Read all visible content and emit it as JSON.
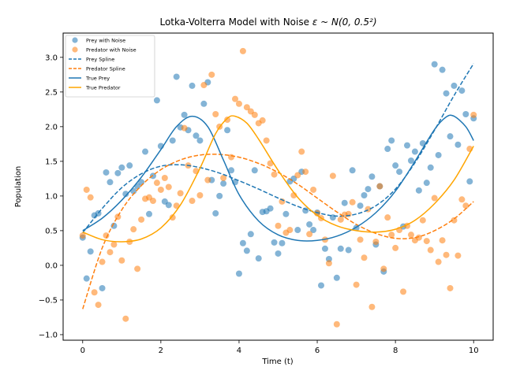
{
  "chart_data": {
    "type": "scatter",
    "title": "Lotka-Volterra Model with Noise",
    "title_math": "ε ~ N(0, 0.5²)",
    "xlabel": "Time (t)",
    "ylabel": "Population",
    "xlim": [
      -0.5,
      10.5
    ],
    "ylim": [
      -1.08,
      3.35
    ],
    "xticks": [
      0,
      2,
      4,
      6,
      8,
      10
    ],
    "yticks": [
      -1.0,
      -0.5,
      0.0,
      0.5,
      1.0,
      1.5,
      2.0,
      2.5,
      3.0
    ],
    "grid": false,
    "legend_position": "top-left",
    "colors": {
      "prey": "#1f77b4",
      "predator": "#ff7f0e",
      "true_predator": "#ffa500"
    },
    "series": [
      {
        "name": "Prey with Noise",
        "kind": "scatter",
        "color": "#1f77b4",
        "x": [
          0.0,
          0.1,
          0.2,
          0.3,
          0.4,
          0.5,
          0.6,
          0.7,
          0.8,
          0.9,
          1.0,
          1.1,
          1.2,
          1.3,
          1.4,
          1.5,
          1.6,
          1.7,
          1.8,
          1.9,
          2.0,
          2.1,
          2.2,
          2.3,
          2.4,
          2.5,
          2.6,
          2.7,
          2.8,
          2.9,
          3.0,
          3.1,
          3.2,
          3.3,
          3.4,
          3.5,
          3.6,
          3.7,
          3.8,
          3.9,
          4.0,
          4.1,
          4.2,
          4.3,
          4.4,
          4.5,
          4.6,
          4.7,
          4.8,
          4.9,
          5.0,
          5.1,
          5.2,
          5.3,
          5.4,
          5.5,
          5.6,
          5.7,
          5.8,
          5.9,
          6.0,
          6.1,
          6.2,
          6.3,
          6.4,
          6.5,
          6.6,
          6.7,
          6.8,
          6.9,
          7.0,
          7.1,
          7.2,
          7.3,
          7.4,
          7.5,
          7.6,
          7.7,
          7.8,
          7.9,
          8.0,
          8.1,
          8.2,
          8.3,
          8.4,
          8.5,
          8.6,
          8.7,
          8.8,
          8.9,
          9.0,
          9.1,
          9.2,
          9.3,
          9.4,
          9.5,
          9.6,
          9.7,
          9.8,
          9.9,
          10.0
        ],
        "y": [
          0.4,
          -0.19,
          0.2,
          0.72,
          0.75,
          -0.33,
          1.34,
          1.2,
          0.57,
          1.33,
          1.41,
          1.03,
          1.44,
          1.07,
          1.14,
          1.2,
          1.64,
          0.74,
          1.29,
          2.38,
          1.72,
          0.92,
          0.87,
          1.8,
          2.72,
          1.99,
          2.17,
          1.95,
          2.59,
          1.87,
          1.8,
          2.33,
          2.64,
          1.23,
          0.75,
          1.0,
          1.18,
          1.95,
          1.37,
          1.2,
          -0.12,
          0.32,
          0.21,
          0.45,
          1.37,
          0.1,
          0.77,
          0.78,
          0.82,
          0.33,
          0.17,
          0.32,
          0.74,
          1.21,
          1.25,
          0.51,
          1.35,
          0.79,
          0.59,
          0.51,
          0.76,
          -0.29,
          0.24,
          0.09,
          0.69,
          -0.18,
          0.24,
          0.9,
          0.22,
          1.37,
          0.54,
          0.86,
          1.01,
          1.1,
          1.28,
          0.3,
          1.14,
          -0.09,
          1.68,
          1.8,
          1.44,
          1.35,
          0.56,
          1.73,
          1.51,
          1.64,
          1.08,
          1.76,
          1.19,
          1.41,
          2.9,
          1.59,
          2.82,
          2.48,
          1.86,
          2.59,
          1.74,
          2.52,
          2.18,
          1.21,
          2.12
        ]
      },
      {
        "name": "Predator with Noise",
        "kind": "scatter",
        "color": "#ff7f0e",
        "x": [
          0.0,
          0.1,
          0.2,
          0.3,
          0.4,
          0.5,
          0.6,
          0.7,
          0.8,
          0.9,
          1.0,
          1.1,
          1.2,
          1.3,
          1.4,
          1.5,
          1.6,
          1.7,
          1.8,
          1.9,
          2.0,
          2.1,
          2.2,
          2.3,
          2.4,
          2.5,
          2.6,
          2.7,
          2.8,
          2.9,
          3.0,
          3.1,
          3.2,
          3.3,
          3.4,
          3.5,
          3.6,
          3.7,
          3.8,
          3.9,
          4.0,
          4.1,
          4.2,
          4.3,
          4.4,
          4.5,
          4.6,
          4.7,
          4.8,
          4.9,
          5.0,
          5.1,
          5.2,
          5.3,
          5.4,
          5.5,
          5.6,
          5.7,
          5.8,
          5.9,
          6.0,
          6.1,
          6.2,
          6.3,
          6.4,
          6.5,
          6.6,
          6.7,
          6.8,
          6.9,
          7.0,
          7.1,
          7.2,
          7.3,
          7.4,
          7.5,
          7.6,
          7.7,
          7.8,
          7.9,
          8.0,
          8.1,
          8.2,
          8.3,
          8.4,
          8.5,
          8.6,
          8.7,
          8.8,
          8.9,
          9.0,
          9.1,
          9.2,
          9.3,
          9.4,
          9.5,
          9.6,
          9.7,
          9.8,
          9.9,
          10.0
        ],
        "y": [
          0.43,
          1.09,
          0.98,
          -0.39,
          -0.57,
          0.05,
          0.43,
          0.19,
          0.3,
          0.7,
          0.07,
          -0.77,
          0.34,
          0.52,
          -0.05,
          0.66,
          0.96,
          0.98,
          0.93,
          1.19,
          1.09,
          1.26,
          1.13,
          0.69,
          0.86,
          1.04,
          1.98,
          1.44,
          0.93,
          1.36,
          1.01,
          2.6,
          1.23,
          2.75,
          2.18,
          2.0,
          1.26,
          2.1,
          1.56,
          2.4,
          2.33,
          3.09,
          2.28,
          2.22,
          2.17,
          2.05,
          2.09,
          1.8,
          1.47,
          1.31,
          0.57,
          0.92,
          0.47,
          0.51,
          1.01,
          1.3,
          1.64,
          1.35,
          0.45,
          1.09,
          0.75,
          0.68,
          0.37,
          0.03,
          1.29,
          -0.85,
          0.66,
          0.73,
          0.74,
          0.91,
          -0.28,
          0.37,
          0.11,
          0.81,
          -0.6,
          0.34,
          1.14,
          -0.05,
          0.69,
          0.44,
          0.25,
          0.51,
          -0.38,
          0.57,
          0.44,
          0.36,
          0.4,
          0.65,
          0.35,
          0.22,
          0.97,
          0.05,
          0.36,
          0.15,
          -0.33,
          0.65,
          0.14,
          0.95,
          0.86,
          1.68,
          2.17
        ]
      },
      {
        "name": "Prey Spline",
        "kind": "dashed-line",
        "color": "#1f77b4",
        "x": [
          0.0,
          0.5,
          1.0,
          1.5,
          2.0,
          2.5,
          3.0,
          3.5,
          4.0,
          4.5,
          5.0,
          5.5,
          6.0,
          6.5,
          7.0,
          7.5,
          8.0,
          8.5,
          9.0,
          9.5,
          10.0
        ],
        "y": [
          0.47,
          0.82,
          1.12,
          1.32,
          1.43,
          1.45,
          1.41,
          1.33,
          1.22,
          1.1,
          0.97,
          0.85,
          0.76,
          0.71,
          0.74,
          0.86,
          1.1,
          1.48,
          1.95,
          2.45,
          2.91
        ]
      },
      {
        "name": "Predator Spline",
        "kind": "dashed-line",
        "color": "#ff7f0e",
        "x": [
          0.0,
          0.5,
          1.0,
          1.5,
          2.0,
          2.5,
          3.0,
          3.5,
          4.0,
          4.5,
          5.0,
          5.5,
          6.0,
          6.5,
          7.0,
          7.5,
          8.0,
          8.5,
          9.0,
          9.5,
          10.0
        ],
        "y": [
          -0.63,
          0.25,
          0.8,
          1.15,
          1.38,
          1.52,
          1.59,
          1.6,
          1.56,
          1.47,
          1.34,
          1.17,
          0.97,
          0.77,
          0.59,
          0.46,
          0.39,
          0.4,
          0.5,
          0.67,
          0.92
        ]
      },
      {
        "name": "True Prey",
        "kind": "line",
        "color": "#1f77b4",
        "x": [
          0.0,
          0.5,
          1.0,
          1.5,
          2.0,
          2.4,
          2.8,
          3.2,
          3.6,
          4.0,
          4.5,
          5.0,
          5.5,
          6.0,
          6.5,
          7.0,
          7.5,
          8.0,
          8.5,
          9.0,
          9.3,
          9.5,
          9.8,
          10.0
        ],
        "y": [
          0.5,
          0.68,
          0.94,
          1.27,
          1.67,
          2.0,
          2.15,
          2.0,
          1.52,
          1.02,
          0.64,
          0.44,
          0.36,
          0.36,
          0.42,
          0.55,
          0.76,
          1.07,
          1.5,
          1.96,
          2.14,
          2.15,
          2.0,
          1.8
        ]
      },
      {
        "name": "True Predator",
        "kind": "line",
        "color": "#ffa500",
        "x": [
          0.0,
          0.5,
          1.0,
          1.5,
          2.0,
          2.5,
          3.0,
          3.4,
          3.7,
          3.9,
          4.2,
          4.5,
          5.0,
          5.5,
          6.0,
          6.5,
          7.0,
          7.5,
          8.0,
          8.5,
          9.0,
          9.5,
          10.0
        ],
        "y": [
          0.48,
          0.37,
          0.34,
          0.38,
          0.54,
          0.87,
          1.4,
          1.9,
          2.12,
          2.15,
          2.05,
          1.82,
          1.37,
          0.98,
          0.72,
          0.57,
          0.5,
          0.48,
          0.52,
          0.65,
          0.89,
          1.23,
          1.72
        ]
      }
    ]
  }
}
